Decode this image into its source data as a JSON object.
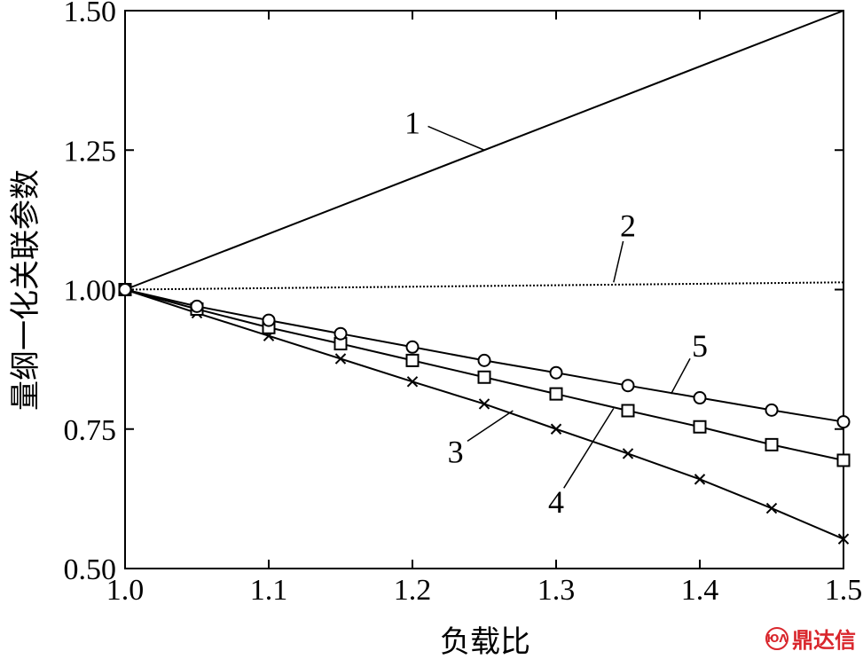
{
  "chart_data": {
    "type": "line",
    "xlabel": "负载比",
    "ylabel": "量纲一化关联参数",
    "xlim": [
      1.0,
      1.5
    ],
    "ylim": [
      0.5,
      1.5
    ],
    "xticks": [
      "1.0",
      "1.1",
      "1.2",
      "1.3",
      "1.4",
      "1.5"
    ],
    "yticks": [
      "0.50",
      "0.75",
      "1.00",
      "1.25",
      "1.50"
    ],
    "grid": false,
    "series": [
      {
        "name": "1",
        "marker": "none",
        "dash": "solid",
        "x": [
          1.0,
          1.5
        ],
        "y": [
          1.0,
          1.5
        ]
      },
      {
        "name": "2",
        "marker": "none",
        "dash": "dotted",
        "x": [
          1.0,
          1.5
        ],
        "y": [
          1.0,
          1.013
        ]
      },
      {
        "name": "3",
        "marker": "x",
        "x": [
          1.0,
          1.05,
          1.1,
          1.15,
          1.2,
          1.25,
          1.3,
          1.35,
          1.4,
          1.45,
          1.5
        ],
        "y": [
          1.0,
          0.958,
          0.917,
          0.876,
          0.835,
          0.795,
          0.75,
          0.706,
          0.66,
          0.608,
          0.553
        ]
      },
      {
        "name": "4",
        "marker": "square",
        "x": [
          1.0,
          1.05,
          1.1,
          1.15,
          1.2,
          1.25,
          1.3,
          1.35,
          1.4,
          1.45,
          1.5
        ],
        "y": [
          1.0,
          0.965,
          0.932,
          0.903,
          0.873,
          0.843,
          0.813,
          0.783,
          0.754,
          0.722,
          0.694
        ]
      },
      {
        "name": "5",
        "marker": "circle",
        "x": [
          1.0,
          1.05,
          1.1,
          1.15,
          1.2,
          1.25,
          1.3,
          1.35,
          1.4,
          1.45,
          1.5
        ],
        "y": [
          1.0,
          0.97,
          0.945,
          0.921,
          0.897,
          0.873,
          0.851,
          0.828,
          0.806,
          0.784,
          0.763
        ]
      }
    ],
    "annotations": [
      {
        "text": "1",
        "x": 1.2,
        "y": 1.28,
        "to_x": 1.25,
        "to_y": 1.25
      },
      {
        "text": "2",
        "x": 1.35,
        "y": 1.095,
        "to_x": 1.34,
        "to_y": 1.013
      },
      {
        "text": "3",
        "x": 1.23,
        "y": 0.69,
        "to_x": 1.27,
        "to_y": 0.783
      },
      {
        "text": "4",
        "x": 1.3,
        "y": 0.6,
        "to_x": 1.34,
        "to_y": 0.787
      },
      {
        "text": "5",
        "x": 1.4,
        "y": 0.88,
        "to_x": 1.38,
        "to_y": 0.813
      }
    ]
  },
  "watermark": {
    "text": "鼎达信",
    "logo": "ЮΛ"
  }
}
